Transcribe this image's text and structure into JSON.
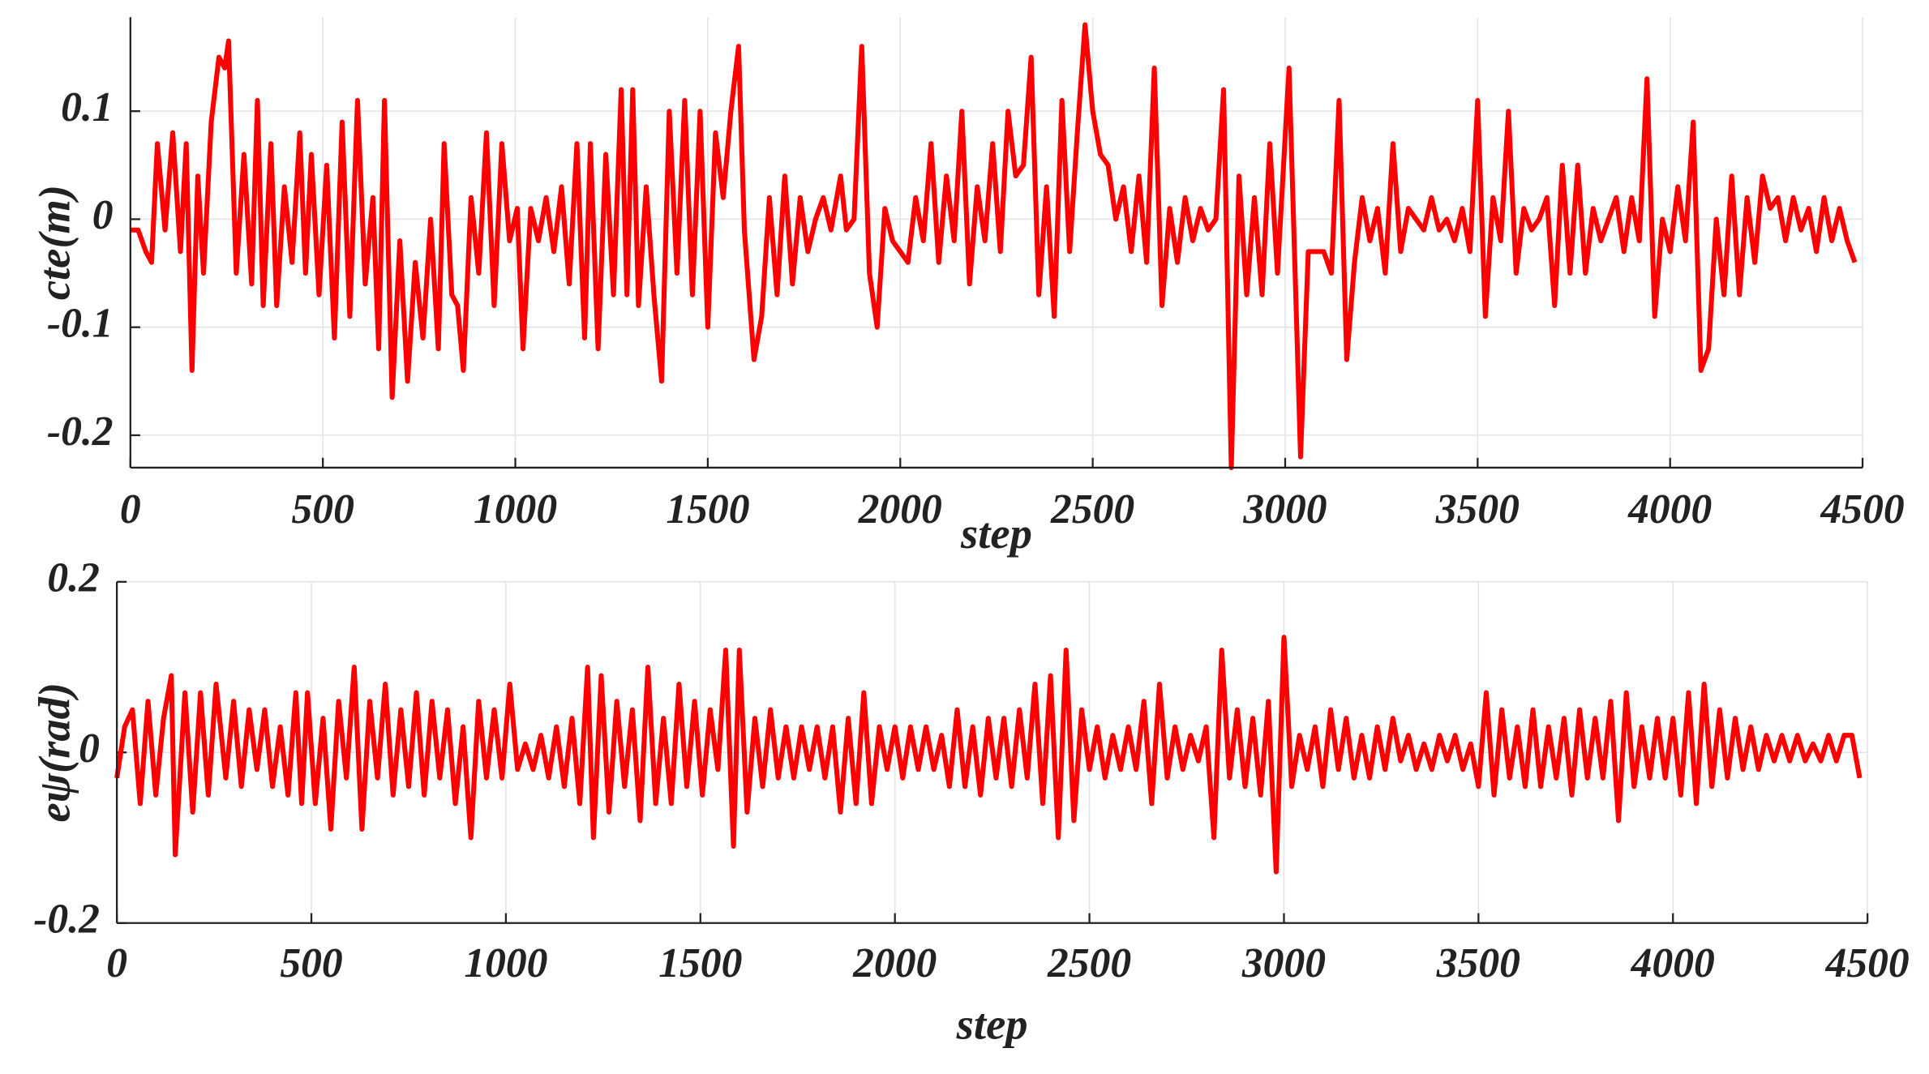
{
  "chart_data": [
    {
      "type": "line",
      "y_label": "cte(m)",
      "x_label": "step",
      "grid": true,
      "xlim": [
        0,
        4500
      ],
      "xticks": [
        0,
        500,
        1000,
        1500,
        2000,
        2500,
        3000,
        3500,
        4000,
        4500
      ],
      "ylim": [
        -0.23,
        0.187
      ],
      "yticks": [
        -0.2,
        -0.1,
        0,
        0.1
      ],
      "series": [
        {
          "color": "#ff0000",
          "x": [
            0,
            20,
            40,
            55,
            70,
            90,
            110,
            130,
            145,
            160,
            175,
            190,
            210,
            230,
            245,
            255,
            275,
            295,
            315,
            330,
            345,
            365,
            380,
            400,
            420,
            440,
            455,
            470,
            490,
            510,
            530,
            550,
            570,
            590,
            610,
            630,
            645,
            660,
            680,
            700,
            720,
            740,
            760,
            780,
            800,
            815,
            835,
            850,
            865,
            885,
            905,
            925,
            945,
            965,
            985,
            1005,
            1020,
            1040,
            1060,
            1080,
            1100,
            1120,
            1140,
            1160,
            1180,
            1195,
            1215,
            1235,
            1255,
            1275,
            1290,
            1305,
            1320,
            1340,
            1360,
            1380,
            1400,
            1420,
            1440,
            1460,
            1480,
            1500,
            1520,
            1540,
            1560,
            1580,
            1595,
            1620,
            1640,
            1660,
            1680,
            1700,
            1720,
            1740,
            1760,
            1780,
            1800,
            1820,
            1845,
            1860,
            1880,
            1900,
            1920,
            1940,
            1960,
            1980,
            2000,
            2020,
            2040,
            2060,
            2080,
            2100,
            2120,
            2140,
            2160,
            2180,
            2200,
            2220,
            2240,
            2260,
            2280,
            2300,
            2320,
            2340,
            2360,
            2380,
            2400,
            2420,
            2440,
            2460,
            2480,
            2500,
            2520,
            2540,
            2560,
            2580,
            2600,
            2620,
            2640,
            2660,
            2680,
            2700,
            2720,
            2740,
            2760,
            2780,
            2800,
            2820,
            2840,
            2860,
            2880,
            2900,
            2920,
            2940,
            2960,
            2980,
            3010,
            3040,
            3060,
            3080,
            3100,
            3120,
            3140,
            3160,
            3180,
            3200,
            3220,
            3240,
            3260,
            3280,
            3300,
            3320,
            3340,
            3360,
            3380,
            3400,
            3420,
            3440,
            3460,
            3480,
            3500,
            3520,
            3540,
            3560,
            3580,
            3600,
            3620,
            3640,
            3660,
            3680,
            3700,
            3720,
            3740,
            3760,
            3780,
            3800,
            3820,
            3840,
            3860,
            3880,
            3900,
            3920,
            3940,
            3960,
            3980,
            4000,
            4020,
            4040,
            4060,
            4080,
            4100,
            4120,
            4140,
            4160,
            4180,
            4200,
            4220,
            4240,
            4260,
            4280,
            4300,
            4320,
            4340,
            4360,
            4380,
            4400,
            4420,
            4440,
            4460,
            4480
          ],
          "values": [
            -0.01,
            -0.01,
            -0.03,
            -0.04,
            0.07,
            -0.01,
            0.08,
            -0.03,
            0.07,
            -0.14,
            0.04,
            -0.05,
            0.09,
            0.15,
            0.14,
            0.165,
            -0.05,
            0.06,
            -0.06,
            0.11,
            -0.08,
            0.07,
            -0.08,
            0.03,
            -0.04,
            0.08,
            -0.05,
            0.06,
            -0.07,
            0.05,
            -0.11,
            0.09,
            -0.09,
            0.11,
            -0.06,
            0.02,
            -0.12,
            0.11,
            -0.165,
            -0.02,
            -0.15,
            -0.04,
            -0.11,
            0.0,
            -0.12,
            0.07,
            -0.07,
            -0.08,
            -0.14,
            0.02,
            -0.05,
            0.08,
            -0.08,
            0.07,
            -0.02,
            0.01,
            -0.12,
            0.01,
            -0.02,
            0.02,
            -0.03,
            0.03,
            -0.06,
            0.07,
            -0.11,
            0.07,
            -0.12,
            0.06,
            -0.07,
            0.12,
            -0.07,
            0.12,
            -0.08,
            0.03,
            -0.07,
            -0.15,
            0.1,
            -0.05,
            0.11,
            -0.07,
            0.1,
            -0.1,
            0.08,
            0.02,
            0.1,
            0.16,
            -0.01,
            -0.13,
            -0.09,
            0.02,
            -0.07,
            0.04,
            -0.06,
            0.02,
            -0.03,
            0.0,
            0.02,
            -0.01,
            0.04,
            -0.01,
            0.0,
            0.16,
            -0.05,
            -0.1,
            0.01,
            -0.02,
            -0.03,
            -0.04,
            0.02,
            -0.02,
            0.07,
            -0.04,
            0.04,
            -0.02,
            0.1,
            -0.06,
            0.03,
            -0.02,
            0.07,
            -0.03,
            0.1,
            0.04,
            0.05,
            0.15,
            -0.07,
            0.03,
            -0.09,
            0.11,
            -0.03,
            0.08,
            0.18,
            0.1,
            0.06,
            0.05,
            0.0,
            0.03,
            -0.03,
            0.04,
            -0.04,
            0.14,
            -0.08,
            0.01,
            -0.04,
            0.02,
            -0.02,
            0.01,
            -0.01,
            0.0,
            0.12,
            -0.23,
            0.04,
            -0.07,
            0.02,
            -0.07,
            0.07,
            -0.05,
            0.14,
            -0.22,
            -0.03,
            -0.03,
            -0.03,
            -0.05,
            0.11,
            -0.13,
            -0.04,
            0.02,
            -0.02,
            0.01,
            -0.05,
            0.07,
            -0.03,
            0.01,
            0.0,
            -0.01,
            0.02,
            -0.01,
            0.0,
            -0.02,
            0.01,
            -0.03,
            0.11,
            -0.09,
            0.02,
            -0.02,
            0.1,
            -0.05,
            0.01,
            -0.01,
            0.0,
            0.02,
            -0.08,
            0.05,
            -0.05,
            0.05,
            -0.05,
            0.01,
            -0.02,
            0.0,
            0.02,
            -0.03,
            0.02,
            -0.02,
            0.13,
            -0.09,
            0.0,
            -0.03,
            0.03,
            -0.02,
            0.09,
            -0.14,
            -0.12,
            0.0,
            -0.07,
            0.04,
            -0.07,
            0.02,
            -0.04,
            0.04,
            0.01,
            0.02,
            -0.02,
            0.02,
            -0.01,
            0.01,
            -0.03,
            0.02,
            -0.02,
            0.01,
            -0.02,
            -0.04
          ]
        }
      ]
    },
    {
      "type": "line",
      "y_label": "eψ(rad)",
      "x_label": "step",
      "grid": true,
      "xlim": [
        0,
        4500
      ],
      "xticks": [
        0,
        500,
        1000,
        1500,
        2000,
        2500,
        3000,
        3500,
        4000,
        4500
      ],
      "ylim": [
        -0.2,
        0.2
      ],
      "yticks": [
        -0.2,
        0,
        0.2
      ],
      "series": [
        {
          "color": "#ff0000",
          "x": [
            0,
            20,
            40,
            60,
            80,
            100,
            120,
            140,
            150,
            175,
            195,
            215,
            235,
            255,
            280,
            300,
            320,
            340,
            360,
            380,
            400,
            420,
            440,
            460,
            475,
            490,
            510,
            530,
            550,
            570,
            590,
            610,
            630,
            650,
            670,
            690,
            710,
            730,
            750,
            770,
            790,
            810,
            830,
            850,
            870,
            890,
            910,
            930,
            950,
            970,
            990,
            1010,
            1030,
            1050,
            1070,
            1090,
            1110,
            1130,
            1150,
            1170,
            1190,
            1210,
            1225,
            1245,
            1265,
            1285,
            1305,
            1325,
            1345,
            1365,
            1385,
            1405,
            1425,
            1445,
            1465,
            1485,
            1505,
            1525,
            1545,
            1565,
            1585,
            1600,
            1620,
            1640,
            1660,
            1680,
            1700,
            1720,
            1740,
            1760,
            1780,
            1800,
            1820,
            1840,
            1860,
            1880,
            1900,
            1920,
            1940,
            1960,
            1980,
            2000,
            2020,
            2040,
            2060,
            2080,
            2100,
            2120,
            2140,
            2160,
            2180,
            2200,
            2220,
            2240,
            2260,
            2280,
            2300,
            2320,
            2340,
            2360,
            2380,
            2400,
            2420,
            2440,
            2460,
            2480,
            2500,
            2520,
            2540,
            2560,
            2580,
            2600,
            2620,
            2640,
            2660,
            2680,
            2700,
            2720,
            2740,
            2760,
            2780,
            2800,
            2820,
            2840,
            2860,
            2880,
            2900,
            2920,
            2940,
            2960,
            2980,
            3000,
            3020,
            3040,
            3060,
            3080,
            3100,
            3120,
            3140,
            3160,
            3180,
            3200,
            3220,
            3240,
            3260,
            3280,
            3300,
            3320,
            3340,
            3360,
            3380,
            3400,
            3420,
            3440,
            3460,
            3480,
            3500,
            3520,
            3540,
            3560,
            3580,
            3600,
            3620,
            3640,
            3660,
            3680,
            3700,
            3720,
            3740,
            3760,
            3780,
            3800,
            3820,
            3840,
            3860,
            3880,
            3900,
            3920,
            3940,
            3960,
            3980,
            4000,
            4020,
            4040,
            4060,
            4080,
            4100,
            4120,
            4140,
            4160,
            4180,
            4200,
            4220,
            4240,
            4260,
            4280,
            4300,
            4320,
            4340,
            4360,
            4380,
            4400,
            4420,
            4440,
            4460,
            4480
          ],
          "values": [
            -0.03,
            0.03,
            0.05,
            -0.06,
            0.06,
            -0.05,
            0.04,
            0.09,
            -0.12,
            0.07,
            -0.07,
            0.07,
            -0.05,
            0.08,
            -0.03,
            0.06,
            -0.04,
            0.05,
            -0.02,
            0.05,
            -0.04,
            0.03,
            -0.05,
            0.07,
            -0.06,
            0.07,
            -0.06,
            0.04,
            -0.09,
            0.06,
            -0.03,
            0.1,
            -0.09,
            0.06,
            -0.03,
            0.08,
            -0.05,
            0.05,
            -0.04,
            0.07,
            -0.05,
            0.06,
            -0.03,
            0.05,
            -0.06,
            0.03,
            -0.1,
            0.06,
            -0.03,
            0.05,
            -0.03,
            0.08,
            -0.02,
            0.01,
            -0.02,
            0.02,
            -0.03,
            0.03,
            -0.04,
            0.04,
            -0.06,
            0.1,
            -0.1,
            0.09,
            -0.07,
            0.06,
            -0.04,
            0.05,
            -0.08,
            0.1,
            -0.06,
            0.04,
            -0.06,
            0.08,
            -0.04,
            0.06,
            -0.05,
            0.05,
            -0.02,
            0.12,
            -0.11,
            0.12,
            -0.07,
            0.04,
            -0.04,
            0.05,
            -0.03,
            0.03,
            -0.03,
            0.03,
            -0.02,
            0.03,
            -0.03,
            0.03,
            -0.07,
            0.04,
            -0.06,
            0.07,
            -0.06,
            0.03,
            -0.02,
            0.03,
            -0.03,
            0.03,
            -0.02,
            0.03,
            -0.02,
            0.02,
            -0.04,
            0.05,
            -0.04,
            0.03,
            -0.05,
            0.04,
            -0.03,
            0.04,
            -0.04,
            0.05,
            -0.03,
            0.08,
            -0.06,
            0.09,
            -0.1,
            0.12,
            -0.08,
            0.05,
            -0.02,
            0.03,
            -0.03,
            0.02,
            -0.02,
            0.03,
            -0.02,
            0.06,
            -0.06,
            0.08,
            -0.03,
            0.03,
            -0.02,
            0.02,
            -0.01,
            0.03,
            -0.1,
            0.12,
            -0.03,
            0.05,
            -0.04,
            0.04,
            -0.05,
            0.06,
            -0.14,
            0.135,
            -0.04,
            0.02,
            -0.02,
            0.03,
            -0.04,
            0.05,
            -0.02,
            0.04,
            -0.03,
            0.02,
            -0.03,
            0.03,
            -0.02,
            0.04,
            -0.01,
            0.02,
            -0.02,
            0.01,
            -0.02,
            0.02,
            -0.01,
            0.02,
            -0.02,
            0.01,
            -0.04,
            0.07,
            -0.05,
            0.05,
            -0.03,
            0.03,
            -0.04,
            0.05,
            -0.04,
            0.03,
            -0.03,
            0.04,
            -0.05,
            0.05,
            -0.03,
            0.04,
            -0.03,
            0.06,
            -0.08,
            0.07,
            -0.04,
            0.03,
            -0.03,
            0.04,
            -0.03,
            0.04,
            -0.05,
            0.07,
            -0.06,
            0.08,
            -0.04,
            0.05,
            -0.03,
            0.04,
            -0.02,
            0.03,
            -0.02,
            0.02,
            -0.01,
            0.02,
            -0.01,
            0.02,
            -0.01,
            0.01,
            -0.01,
            0.02,
            -0.01,
            0.02,
            0.02,
            -0.03
          ]
        }
      ]
    }
  ]
}
